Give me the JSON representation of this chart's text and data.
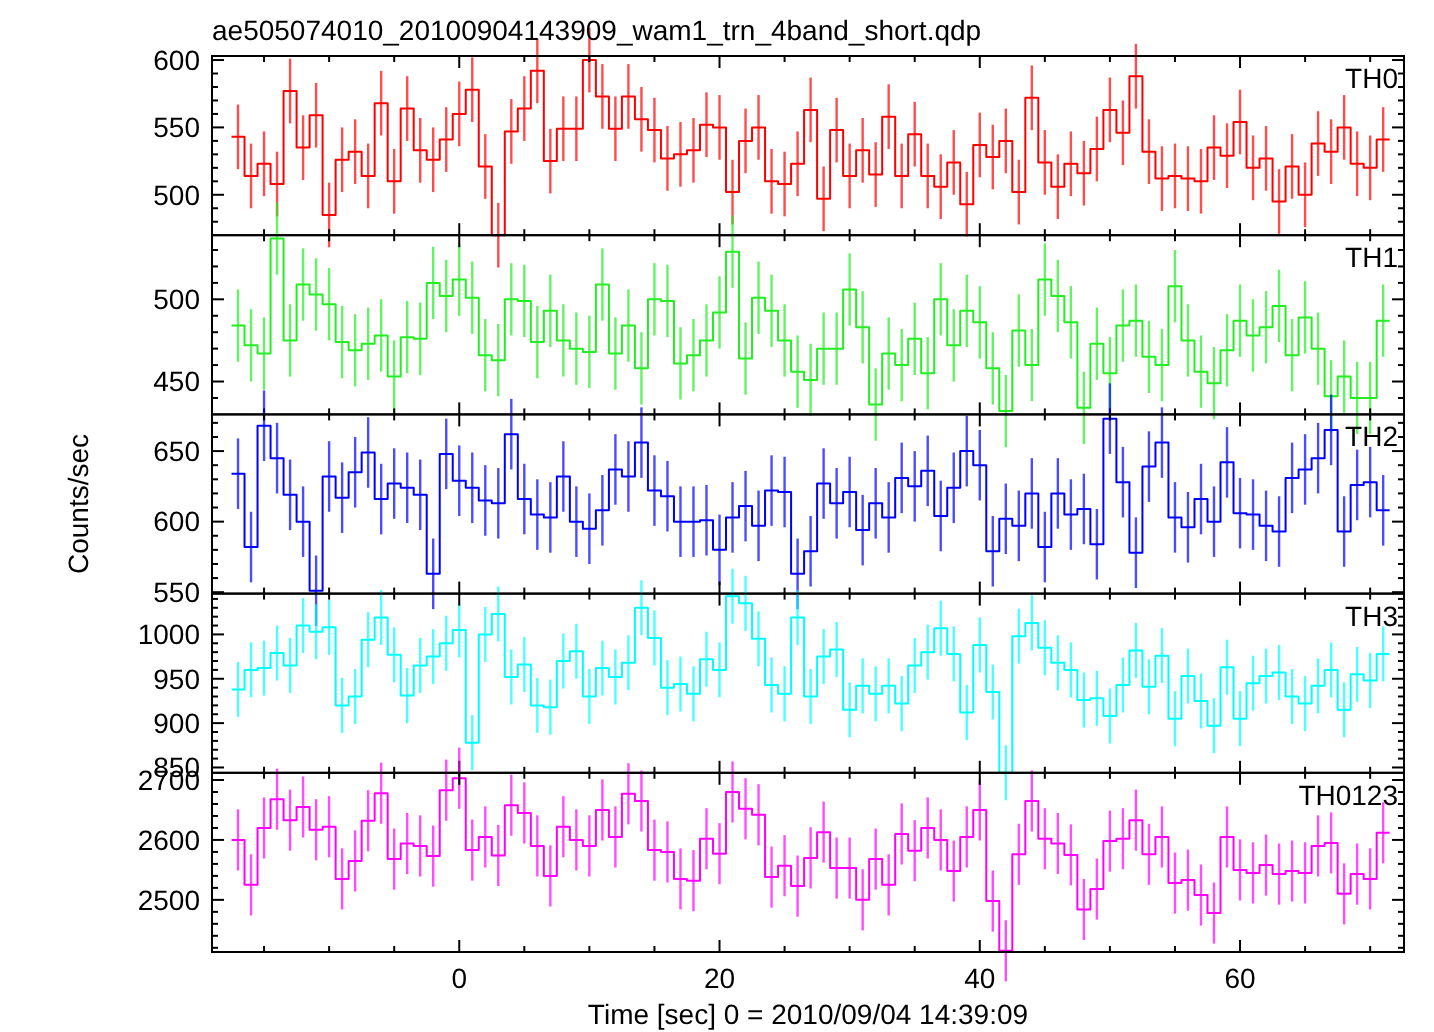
{
  "chart_data": [
    {
      "type": "step",
      "title": "ae505074010_20100904143909_wam1_trn_4band_short.qdp",
      "tick_labels": "y",
      "xlim": [
        -19,
        72.6
      ],
      "ylim": [
        470,
        603
      ],
      "xticks": [
        {
          "value": -15,
          "label": null
        },
        {
          "value": -10,
          "label": null
        },
        {
          "value": -5,
          "label": null
        },
        0,
        {
          "value": 5,
          "label": null
        },
        {
          "value": 10,
          "label": null
        },
        {
          "value": 15,
          "label": null
        },
        20,
        {
          "value": 25,
          "label": null
        },
        {
          "value": 30,
          "label": null
        },
        {
          "value": 35,
          "label": null
        },
        40,
        {
          "value": 45,
          "label": null
        },
        {
          "value": 50,
          "label": null
        },
        {
          "value": 55,
          "label": null
        },
        60,
        {
          "value": 65,
          "label": null
        },
        {
          "value": 70,
          "label": null
        }
      ],
      "yticks": [
        {
          "value": 480,
          "label": null
        },
        {
          "value": 490,
          "label": null
        },
        500,
        {
          "value": 510,
          "label": null
        },
        {
          "value": 520,
          "label": null
        },
        {
          "value": 530,
          "label": null
        },
        {
          "value": 540,
          "label": null
        },
        550,
        {
          "value": 560,
          "label": null
        },
        {
          "value": 570,
          "label": null
        },
        {
          "value": 580,
          "label": null
        },
        {
          "value": 590,
          "label": null
        },
        600
      ],
      "x": [
        -17,
        -16,
        -15,
        -14,
        -13,
        -12,
        -11,
        -10,
        -9,
        -8,
        -7,
        -6,
        -5,
        -4,
        -3,
        -2,
        -1,
        0,
        1,
        2,
        3,
        4,
        5,
        6,
        7,
        8,
        9,
        10,
        11,
        12,
        13,
        14,
        15,
        16,
        17,
        18,
        19,
        20,
        21,
        22,
        23,
        24,
        25,
        26,
        27,
        28,
        29,
        30,
        31,
        32,
        33,
        34,
        35,
        36,
        37,
        38,
        39,
        40,
        41,
        42,
        43,
        44,
        45,
        46,
        47,
        48,
        49,
        50,
        51,
        52,
        53,
        54,
        55,
        56,
        57,
        58,
        59,
        60,
        61,
        62,
        63,
        64,
        65,
        66,
        67,
        68,
        69,
        70,
        71
      ],
      "series": [
        {
          "name": "TH0",
          "color": "#ff0000",
          "values": [
            543,
            514,
            523,
            508,
            577,
            535,
            559,
            485,
            526,
            532,
            514,
            568,
            510,
            564,
            533,
            526,
            541,
            560,
            578,
            521,
            470,
            547,
            564,
            592,
            525,
            549,
            549,
            600,
            573,
            549,
            573,
            556,
            548,
            527,
            530,
            533,
            552,
            550,
            502,
            540,
            550,
            510,
            508,
            523,
            563,
            497,
            548,
            514,
            533,
            515,
            558,
            514,
            545,
            514,
            506,
            524,
            493,
            537,
            528,
            540,
            502,
            572,
            524,
            506,
            523,
            516,
            534,
            563,
            546,
            588,
            532,
            512,
            514,
            512,
            510,
            535,
            529,
            554,
            520,
            527,
            495,
            521,
            500,
            538,
            532,
            550,
            523,
            520,
            541
          ],
          "errors": [
            24,
            24,
            24,
            24,
            24,
            24,
            24,
            24,
            24,
            24,
            24,
            24,
            24,
            24,
            24,
            24,
            24,
            24,
            24,
            24,
            24,
            24,
            24,
            24,
            24,
            24,
            24,
            24,
            24,
            24,
            24,
            24,
            24,
            24,
            24,
            24,
            24,
            24,
            24,
            24,
            24,
            24,
            24,
            24,
            24,
            24,
            24,
            24,
            24,
            24,
            24,
            24,
            24,
            24,
            24,
            24,
            24,
            24,
            24,
            24,
            24,
            24,
            24,
            24,
            24,
            24,
            24,
            24,
            24,
            24,
            24,
            24,
            24,
            24,
            24,
            24,
            24,
            24,
            24,
            24,
            24,
            24,
            24,
            24,
            24,
            24,
            24,
            24,
            24
          ]
        }
      ]
    },
    {
      "type": "step",
      "tick_labels": "y",
      "xlim": [
        -19,
        72.6
      ],
      "ylim": [
        430,
        539
      ],
      "xticks": [
        {
          "value": -15,
          "label": null
        },
        {
          "value": -10,
          "label": null
        },
        {
          "value": -5,
          "label": null
        },
        0,
        {
          "value": 5,
          "label": null
        },
        {
          "value": 10,
          "label": null
        },
        {
          "value": 15,
          "label": null
        },
        20,
        {
          "value": 25,
          "label": null
        },
        {
          "value": 30,
          "label": null
        },
        {
          "value": 35,
          "label": null
        },
        40,
        {
          "value": 45,
          "label": null
        },
        {
          "value": 50,
          "label": null
        },
        {
          "value": 55,
          "label": null
        },
        60,
        {
          "value": 65,
          "label": null
        },
        {
          "value": 70,
          "label": null
        }
      ],
      "yticks": [
        {
          "value": 440,
          "label": null
        },
        450,
        {
          "value": 460,
          "label": null
        },
        {
          "value": 470,
          "label": null
        },
        {
          "value": 480,
          "label": null
        },
        {
          "value": 490,
          "label": null
        },
        500,
        {
          "value": 510,
          "label": null
        },
        {
          "value": 520,
          "label": null
        },
        {
          "value": 530,
          "label": null
        }
      ],
      "x": [
        -17,
        -16,
        -15,
        -14,
        -13,
        -12,
        -11,
        -10,
        -9,
        -8,
        -7,
        -6,
        -5,
        -4,
        -3,
        -2,
        -1,
        0,
        1,
        2,
        3,
        4,
        5,
        6,
        7,
        8,
        9,
        10,
        11,
        12,
        13,
        14,
        15,
        16,
        17,
        18,
        19,
        20,
        21,
        22,
        23,
        24,
        25,
        26,
        27,
        28,
        29,
        30,
        31,
        32,
        33,
        34,
        35,
        36,
        37,
        38,
        39,
        40,
        41,
        42,
        43,
        44,
        45,
        46,
        47,
        48,
        49,
        50,
        51,
        52,
        53,
        54,
        55,
        56,
        57,
        58,
        59,
        60,
        61,
        62,
        63,
        64,
        65,
        66,
        67,
        68,
        69,
        70,
        71
      ],
      "series": [
        {
          "name": "TH1",
          "color": "#22ee22",
          "values": [
            484,
            472,
            467,
            537,
            475,
            509,
            503,
            497,
            474,
            469,
            473,
            478,
            453,
            477,
            476,
            510,
            502,
            512,
            501,
            466,
            463,
            500,
            499,
            474,
            493,
            475,
            470,
            468,
            509,
            467,
            484,
            458,
            500,
            499,
            461,
            466,
            475,
            492,
            529,
            464,
            501,
            493,
            475,
            456,
            451,
            470,
            470,
            506,
            483,
            436,
            467,
            460,
            476,
            455,
            500,
            472,
            493,
            486,
            458,
            432,
            481,
            460,
            512,
            502,
            486,
            434,
            473,
            455,
            484,
            487,
            465,
            460,
            508,
            475,
            456,
            449,
            469,
            487,
            478,
            483,
            496,
            466,
            489,
            470,
            441,
            453,
            440,
            440,
            487
          ],
          "errors": [
            22,
            22,
            22,
            22,
            22,
            22,
            22,
            22,
            22,
            22,
            22,
            22,
            22,
            22,
            22,
            22,
            22,
            22,
            22,
            22,
            22,
            22,
            22,
            22,
            22,
            22,
            22,
            22,
            22,
            22,
            22,
            22,
            22,
            22,
            22,
            22,
            22,
            22,
            22,
            22,
            22,
            22,
            22,
            22,
            22,
            22,
            22,
            22,
            22,
            22,
            22,
            22,
            22,
            22,
            22,
            22,
            22,
            22,
            22,
            22,
            22,
            22,
            22,
            22,
            22,
            22,
            22,
            22,
            22,
            22,
            22,
            22,
            22,
            22,
            22,
            22,
            22,
            22,
            22,
            22,
            22,
            22,
            22,
            22,
            22,
            22,
            22,
            22,
            22
          ]
        }
      ]
    },
    {
      "type": "step",
      "tick_labels": "y",
      "ylabel": "Counts/sec",
      "xlim": [
        -19,
        72.6
      ],
      "ylim": [
        549,
        676
      ],
      "xticks": [
        {
          "value": -15,
          "label": null
        },
        {
          "value": -10,
          "label": null
        },
        {
          "value": -5,
          "label": null
        },
        0,
        {
          "value": 5,
          "label": null
        },
        {
          "value": 10,
          "label": null
        },
        {
          "value": 15,
          "label": null
        },
        20,
        {
          "value": 25,
          "label": null
        },
        {
          "value": 30,
          "label": null
        },
        {
          "value": 35,
          "label": null
        },
        40,
        {
          "value": 45,
          "label": null
        },
        {
          "value": 50,
          "label": null
        },
        {
          "value": 55,
          "label": null
        },
        60,
        {
          "value": 65,
          "label": null
        },
        {
          "value": 70,
          "label": null
        }
      ],
      "yticks": [
        550,
        {
          "value": 560,
          "label": null
        },
        {
          "value": 570,
          "label": null
        },
        {
          "value": 580,
          "label": null
        },
        {
          "value": 590,
          "label": null
        },
        600,
        {
          "value": 610,
          "label": null
        },
        {
          "value": 620,
          "label": null
        },
        {
          "value": 630,
          "label": null
        },
        {
          "value": 640,
          "label": null
        },
        650,
        {
          "value": 660,
          "label": null
        },
        {
          "value": 670,
          "label": null
        }
      ],
      "x": [
        -17,
        -16,
        -15,
        -14,
        -13,
        -12,
        -11,
        -10,
        -9,
        -8,
        -7,
        -6,
        -5,
        -4,
        -3,
        -2,
        -1,
        0,
        1,
        2,
        3,
        4,
        5,
        6,
        7,
        8,
        9,
        10,
        11,
        12,
        13,
        14,
        15,
        16,
        17,
        18,
        19,
        20,
        21,
        22,
        23,
        24,
        25,
        26,
        27,
        28,
        29,
        30,
        31,
        32,
        33,
        34,
        35,
        36,
        37,
        38,
        39,
        40,
        41,
        42,
        43,
        44,
        45,
        46,
        47,
        48,
        49,
        50,
        51,
        52,
        53,
        54,
        55,
        56,
        57,
        58,
        59,
        60,
        61,
        62,
        63,
        64,
        65,
        66,
        67,
        68,
        69,
        70,
        71
      ],
      "series": [
        {
          "name": "TH2",
          "color": "#0000ff",
          "values": [
            634,
            582,
            668,
            645,
            619,
            600,
            551,
            632,
            617,
            635,
            649,
            616,
            627,
            624,
            619,
            563,
            648,
            629,
            624,
            615,
            613,
            662,
            616,
            605,
            603,
            632,
            600,
            595,
            608,
            637,
            632,
            656,
            622,
            618,
            600,
            600,
            601,
            580,
            603,
            611,
            597,
            622,
            621,
            563,
            579,
            627,
            613,
            621,
            594,
            613,
            603,
            631,
            625,
            636,
            604,
            624,
            650,
            640,
            579,
            602,
            597,
            620,
            582,
            620,
            605,
            609,
            584,
            673,
            628,
            578,
            639,
            656,
            603,
            596,
            616,
            600,
            642,
            606,
            605,
            597,
            593,
            631,
            637,
            645,
            665,
            593,
            626,
            628,
            608
          ],
          "errors": [
            25,
            25,
            25,
            25,
            25,
            25,
            25,
            25,
            25,
            25,
            25,
            25,
            25,
            25,
            25,
            25,
            25,
            25,
            25,
            25,
            25,
            25,
            25,
            25,
            25,
            25,
            25,
            25,
            25,
            25,
            25,
            25,
            25,
            25,
            25,
            25,
            25,
            25,
            25,
            25,
            25,
            25,
            25,
            25,
            25,
            25,
            25,
            25,
            25,
            25,
            25,
            25,
            25,
            25,
            25,
            25,
            25,
            25,
            25,
            25,
            25,
            25,
            25,
            25,
            25,
            25,
            25,
            25,
            25,
            25,
            25,
            25,
            25,
            25,
            25,
            25,
            25,
            25,
            25,
            25,
            25,
            25,
            25,
            25,
            25,
            25,
            25,
            25,
            25
          ]
        }
      ]
    },
    {
      "type": "step",
      "tick_labels": "y",
      "xlim": [
        -19,
        72.6
      ],
      "ylim": [
        844,
        1046
      ],
      "xticks": [
        {
          "value": -15,
          "label": null
        },
        {
          "value": -10,
          "label": null
        },
        {
          "value": -5,
          "label": null
        },
        0,
        {
          "value": 5,
          "label": null
        },
        {
          "value": 10,
          "label": null
        },
        {
          "value": 15,
          "label": null
        },
        20,
        {
          "value": 25,
          "label": null
        },
        {
          "value": 30,
          "label": null
        },
        {
          "value": 35,
          "label": null
        },
        40,
        {
          "value": 45,
          "label": null
        },
        {
          "value": 50,
          "label": null
        },
        {
          "value": 55,
          "label": null
        },
        60,
        {
          "value": 65,
          "label": null
        },
        {
          "value": 70,
          "label": null
        }
      ],
      "yticks": [
        850,
        {
          "value": 860,
          "label": null
        },
        {
          "value": 870,
          "label": null
        },
        {
          "value": 880,
          "label": null
        },
        {
          "value": 890,
          "label": null
        },
        900,
        {
          "value": 910,
          "label": null
        },
        {
          "value": 920,
          "label": null
        },
        {
          "value": 930,
          "label": null
        },
        {
          "value": 940,
          "label": null
        },
        950,
        {
          "value": 960,
          "label": null
        },
        {
          "value": 970,
          "label": null
        },
        {
          "value": 980,
          "label": null
        },
        {
          "value": 990,
          "label": null
        },
        1000,
        {
          "value": 1010,
          "label": null
        },
        {
          "value": 1020,
          "label": null
        },
        {
          "value": 1030,
          "label": null
        },
        {
          "value": 1040,
          "label": null
        }
      ],
      "x": [
        -17,
        -16,
        -15,
        -14,
        -13,
        -12,
        -11,
        -10,
        -9,
        -8,
        -7,
        -6,
        -5,
        -4,
        -3,
        -2,
        -1,
        0,
        1,
        2,
        3,
        4,
        5,
        6,
        7,
        8,
        9,
        10,
        11,
        12,
        13,
        14,
        15,
        16,
        17,
        18,
        19,
        20,
        21,
        22,
        23,
        24,
        25,
        26,
        27,
        28,
        29,
        30,
        31,
        32,
        33,
        34,
        35,
        36,
        37,
        38,
        39,
        40,
        41,
        42,
        43,
        44,
        45,
        46,
        47,
        48,
        49,
        50,
        51,
        52,
        53,
        54,
        55,
        56,
        57,
        58,
        59,
        60,
        61,
        62,
        63,
        64,
        65,
        66,
        67,
        68,
        69,
        70,
        71
      ],
      "series": [
        {
          "name": "TH3",
          "color": "#00ffff",
          "values": [
            938,
            960,
            962,
            979,
            965,
            1010,
            1003,
            1008,
            920,
            930,
            994,
            1019,
            977,
            931,
            965,
            975,
            990,
            1005,
            878,
            1000,
            1023,
            952,
            966,
            920,
            918,
            970,
            981,
            930,
            962,
            952,
            968,
            1030,
            996,
            940,
            944,
            933,
            972,
            960,
            1043,
            1035,
            995,
            943,
            933,
            1019,
            930,
            975,
            983,
            915,
            942,
            933,
            942,
            922,
            965,
            980,
            1007,
            978,
            912,
            988,
            935,
            844,
            998,
            1013,
            985,
            968,
            960,
            926,
            928,
            908,
            943,
            982,
            941,
            976,
            905,
            953,
            925,
            897,
            963,
            905,
            945,
            953,
            957,
            930,
            922,
            942,
            960,
            915,
            955,
            948,
            978
          ],
          "errors": [
            31,
            31,
            31,
            31,
            31,
            31,
            31,
            31,
            31,
            31,
            31,
            31,
            31,
            31,
            31,
            31,
            31,
            31,
            31,
            31,
            31,
            31,
            31,
            31,
            31,
            31,
            31,
            31,
            31,
            31,
            31,
            31,
            31,
            31,
            31,
            31,
            31,
            31,
            31,
            31,
            31,
            31,
            31,
            31,
            31,
            31,
            31,
            31,
            31,
            31,
            31,
            31,
            31,
            31,
            31,
            31,
            31,
            31,
            31,
            31,
            31,
            31,
            31,
            31,
            31,
            31,
            31,
            31,
            31,
            31,
            31,
            31,
            31,
            31,
            31,
            31,
            31,
            31,
            31,
            31,
            31,
            31,
            31,
            31,
            31,
            31,
            31,
            31,
            31
          ]
        }
      ]
    },
    {
      "type": "step",
      "xlabel": "Time [sec] 0 = 2010/09/04 14:39:09",
      "xlim": [
        -19,
        72.6
      ],
      "ylim": [
        2413,
        2712
      ],
      "xticks": [
        {
          "value": -15,
          "label": null
        },
        {
          "value": -10,
          "label": null
        },
        {
          "value": -5,
          "label": null
        },
        0,
        {
          "value": 5,
          "label": null
        },
        {
          "value": 10,
          "label": null
        },
        {
          "value": 15,
          "label": null
        },
        20,
        {
          "value": 25,
          "label": null
        },
        {
          "value": 30,
          "label": null
        },
        {
          "value": 35,
          "label": null
        },
        40,
        {
          "value": 45,
          "label": null
        },
        {
          "value": 50,
          "label": null
        },
        {
          "value": 55,
          "label": null
        },
        60,
        {
          "value": 65,
          "label": null
        },
        {
          "value": 70,
          "label": null
        }
      ],
      "yticks": [
        {
          "value": 2420,
          "label": null
        },
        {
          "value": 2440,
          "label": null
        },
        {
          "value": 2460,
          "label": null
        },
        {
          "value": 2480,
          "label": null
        },
        2500,
        {
          "value": 2520,
          "label": null
        },
        {
          "value": 2540,
          "label": null
        },
        {
          "value": 2560,
          "label": null
        },
        {
          "value": 2580,
          "label": null
        },
        2600,
        {
          "value": 2620,
          "label": null
        },
        {
          "value": 2640,
          "label": null
        },
        {
          "value": 2660,
          "label": null
        },
        {
          "value": 2680,
          "label": null
        },
        2700
      ],
      "x": [
        -17,
        -16,
        -15,
        -14,
        -13,
        -12,
        -11,
        -10,
        -9,
        -8,
        -7,
        -6,
        -5,
        -4,
        -3,
        -2,
        -1,
        0,
        1,
        2,
        3,
        4,
        5,
        6,
        7,
        8,
        9,
        10,
        11,
        12,
        13,
        14,
        15,
        16,
        17,
        18,
        19,
        20,
        21,
        22,
        23,
        24,
        25,
        26,
        27,
        28,
        29,
        30,
        31,
        32,
        33,
        34,
        35,
        36,
        37,
        38,
        39,
        40,
        41,
        42,
        43,
        44,
        45,
        46,
        47,
        48,
        49,
        50,
        51,
        52,
        53,
        54,
        55,
        56,
        57,
        58,
        59,
        60,
        61,
        62,
        63,
        64,
        65,
        66,
        67,
        68,
        69,
        70,
        71
      ],
      "series": [
        {
          "name": "TH0123",
          "color": "#ff00ff",
          "values": [
            2600,
            2525,
            2620,
            2668,
            2633,
            2655,
            2617,
            2622,
            2535,
            2565,
            2632,
            2678,
            2568,
            2594,
            2590,
            2573,
            2683,
            2703,
            2583,
            2605,
            2574,
            2658,
            2645,
            2590,
            2540,
            2622,
            2600,
            2590,
            2650,
            2605,
            2677,
            2665,
            2583,
            2580,
            2535,
            2532,
            2602,
            2577,
            2680,
            2652,
            2642,
            2538,
            2557,
            2523,
            2570,
            2613,
            2553,
            2553,
            2500,
            2568,
            2525,
            2610,
            2582,
            2620,
            2600,
            2548,
            2605,
            2650,
            2498,
            2415,
            2576,
            2665,
            2602,
            2594,
            2575,
            2484,
            2518,
            2598,
            2602,
            2633,
            2576,
            2605,
            2528,
            2533,
            2508,
            2478,
            2605,
            2550,
            2545,
            2558,
            2543,
            2548,
            2545,
            2590,
            2595,
            2510,
            2543,
            2535,
            2612
          ],
          "errors": [
            51,
            51,
            51,
            51,
            51,
            51,
            51,
            51,
            51,
            51,
            51,
            51,
            51,
            51,
            51,
            51,
            51,
            51,
            51,
            51,
            51,
            51,
            51,
            51,
            51,
            51,
            51,
            51,
            51,
            51,
            51,
            51,
            51,
            51,
            51,
            51,
            51,
            51,
            51,
            51,
            51,
            51,
            51,
            51,
            51,
            51,
            51,
            51,
            51,
            51,
            51,
            51,
            51,
            51,
            51,
            51,
            51,
            51,
            51,
            51,
            51,
            51,
            51,
            51,
            51,
            51,
            51,
            51,
            51,
            51,
            51,
            51,
            51,
            51,
            51,
            51,
            51,
            51,
            51,
            51,
            51,
            51,
            51,
            51,
            51,
            51,
            51,
            51,
            51
          ]
        }
      ]
    }
  ]
}
